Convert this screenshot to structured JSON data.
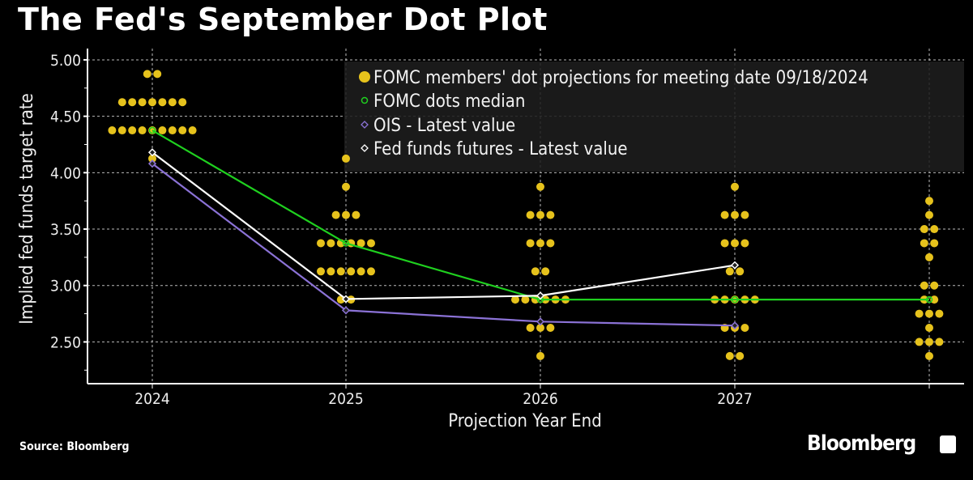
{
  "title": "The Fed's September Dot Plot",
  "source": "Source: Bloomberg",
  "logo": "Bloomberg",
  "chart_data": {
    "type": "scatter",
    "title": "The Fed's September Dot Plot",
    "xlabel": "Projection Year End",
    "ylabel": "Implied fed funds target rate",
    "categories": [
      "2024",
      "2025",
      "2026",
      "2027",
      ""
    ],
    "ylim": [
      2.13,
      5.1
    ],
    "yticks": [
      "5.00",
      "4.50",
      "4.00",
      "3.50",
      "3.00",
      "2.50"
    ],
    "grid": true,
    "legend_position": "top-right",
    "legend": [
      "FOMC members' dot projections for meeting date 09/18/2024",
      "FOMC dots median",
      "OIS - Latest value",
      "Fed funds futures - Latest value"
    ],
    "colors": {
      "dots": "#e6c21c",
      "median": "#1fd01f",
      "ois": "#8b72d6",
      "futures": "#ffffff"
    },
    "dots": [
      [
        [
          4.875,
          2
        ],
        [
          4.625,
          7
        ],
        [
          4.375,
          9
        ],
        [
          4.125,
          1
        ]
      ],
      [
        [
          4.125,
          1
        ],
        [
          3.875,
          1
        ],
        [
          3.625,
          3
        ],
        [
          3.375,
          6
        ],
        [
          3.125,
          6
        ],
        [
          2.875,
          2
        ]
      ],
      [
        [
          3.875,
          1
        ],
        [
          3.625,
          3
        ],
        [
          3.375,
          3
        ],
        [
          3.125,
          2
        ],
        [
          2.875,
          6
        ],
        [
          2.625,
          3
        ],
        [
          2.375,
          1
        ]
      ],
      [
        [
          3.875,
          1
        ],
        [
          3.625,
          3
        ],
        [
          3.375,
          3
        ],
        [
          3.125,
          2
        ],
        [
          2.875,
          5
        ],
        [
          2.625,
          3
        ],
        [
          2.375,
          2
        ]
      ],
      [
        [
          3.75,
          1
        ],
        [
          3.625,
          1
        ],
        [
          3.5,
          2
        ],
        [
          3.375,
          2
        ],
        [
          3.25,
          1
        ],
        [
          3.0,
          2
        ],
        [
          2.875,
          2
        ],
        [
          2.75,
          3
        ],
        [
          2.625,
          1
        ],
        [
          2.5,
          3
        ],
        [
          2.375,
          1
        ]
      ]
    ],
    "series": [
      {
        "name": "FOMC dots median",
        "values": [
          4.375,
          3.375,
          2.875,
          2.875,
          2.875
        ]
      },
      {
        "name": "OIS - Latest value",
        "values": [
          4.08,
          2.78,
          2.68,
          2.645
        ]
      },
      {
        "name": "Fed funds futures - Latest value",
        "values": [
          4.18,
          2.88,
          2.91,
          3.18
        ]
      }
    ]
  }
}
